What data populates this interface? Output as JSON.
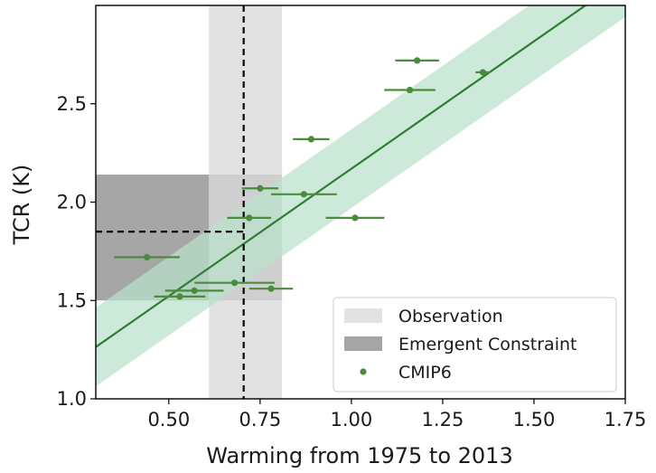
{
  "chart_data": {
    "type": "scatter",
    "title": "",
    "xlabel": "Warming from 1975 to 2013",
    "ylabel": "TCR (K)",
    "xlim": [
      0.3,
      1.75
    ],
    "ylim": [
      1.0,
      3.0
    ],
    "x_ticks": [
      0.5,
      0.75,
      1.0,
      1.25,
      1.5,
      1.75
    ],
    "x_tick_labels": [
      "0.50",
      "0.75",
      "1.00",
      "1.25",
      "1.50",
      "1.75"
    ],
    "y_ticks": [
      1.0,
      1.5,
      2.0,
      2.5
    ],
    "y_tick_labels": [
      "1.0",
      "1.5",
      "2.0",
      "2.5"
    ],
    "grid": false,
    "legend_position": "bottom-right",
    "legend": [
      {
        "label": "Observation",
        "kind": "patch",
        "color": "#e2e2e2"
      },
      {
        "label": "Emergent Constraint",
        "kind": "patch",
        "color": "#a6a6a6"
      },
      {
        "label": "CMIP6",
        "kind": "marker",
        "color": "#4a8c3c"
      }
    ],
    "colors": {
      "points": "#4a8c3c",
      "fit_line": "#2e7d32",
      "confidence_band": "#b9e0cc",
      "observation_band": "#e2e2e2",
      "constraint_band": "#a6a6a6"
    },
    "observation": {
      "x_min": 0.61,
      "x_max": 0.81,
      "best": 0.705
    },
    "emergent_constraint": {
      "y_min": 1.5,
      "y_max": 2.14,
      "best": 1.85
    },
    "regression": {
      "slope": 1.295,
      "intercept": 0.875,
      "band_halfwidth": 0.2
    },
    "series": [
      {
        "name": "CMIP6",
        "points": [
          {
            "x": 0.44,
            "y": 1.72,
            "xerr": 0.09
          },
          {
            "x": 0.53,
            "y": 1.52,
            "xerr": 0.07
          },
          {
            "x": 0.57,
            "y": 1.55,
            "xerr": 0.08
          },
          {
            "x": 0.68,
            "y": 1.59,
            "xerr": 0.11
          },
          {
            "x": 0.78,
            "y": 1.56,
            "xerr": 0.06
          },
          {
            "x": 0.72,
            "y": 1.92,
            "xerr": 0.06
          },
          {
            "x": 0.75,
            "y": 2.07,
            "xerr": 0.05
          },
          {
            "x": 0.87,
            "y": 2.04,
            "xerr": 0.09
          },
          {
            "x": 0.89,
            "y": 2.32,
            "xerr": 0.05
          },
          {
            "x": 1.01,
            "y": 1.92,
            "xerr": 0.08
          },
          {
            "x": 1.16,
            "y": 2.57,
            "xerr": 0.07
          },
          {
            "x": 1.18,
            "y": 2.72,
            "xerr": 0.06
          },
          {
            "x": 1.36,
            "y": 2.66,
            "xerr": 0.02
          }
        ]
      }
    ]
  }
}
